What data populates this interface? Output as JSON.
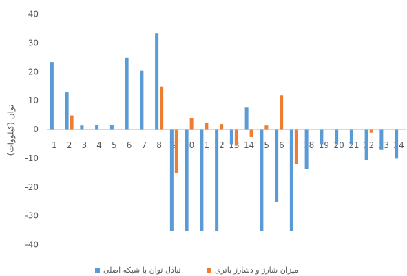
{
  "chart_data": {
    "type": "bar",
    "y_label": "توان (کیلووات)",
    "categories": [
      "1",
      "2",
      "3",
      "4",
      "5",
      "6",
      "7",
      "8",
      "9",
      "10",
      "11",
      "12",
      "13",
      "14",
      "15",
      "16",
      "17",
      "18",
      "19",
      "20",
      "21",
      "22",
      "23",
      "24"
    ],
    "series": [
      {
        "name": "تبادل توان با شبکه اصلی",
        "color": "#5b9bd5",
        "values": [
          23.5,
          13,
          1.5,
          1.8,
          1.8,
          25,
          20.5,
          33.5,
          -35,
          -35,
          -35,
          -35,
          -5,
          7.7,
          -35,
          -25,
          -35,
          -13.5,
          -5,
          -5,
          -5,
          -10.5,
          -7,
          -10
        ]
      },
      {
        "name": "میزان شارژ و دشارژ باتری",
        "color": "#ed7d31",
        "values": [
          0,
          5,
          0,
          0,
          0,
          0,
          0,
          15,
          -15,
          4,
          2.5,
          2,
          -5.5,
          -2.5,
          1.5,
          12,
          -12,
          0,
          0,
          0,
          0,
          -1,
          0,
          0
        ]
      }
    ],
    "ylim": [
      -40,
      40
    ],
    "yticks": [
      -40,
      -30,
      -20,
      -10,
      0,
      10,
      20,
      30,
      40
    ],
    "legend": "bottom"
  }
}
